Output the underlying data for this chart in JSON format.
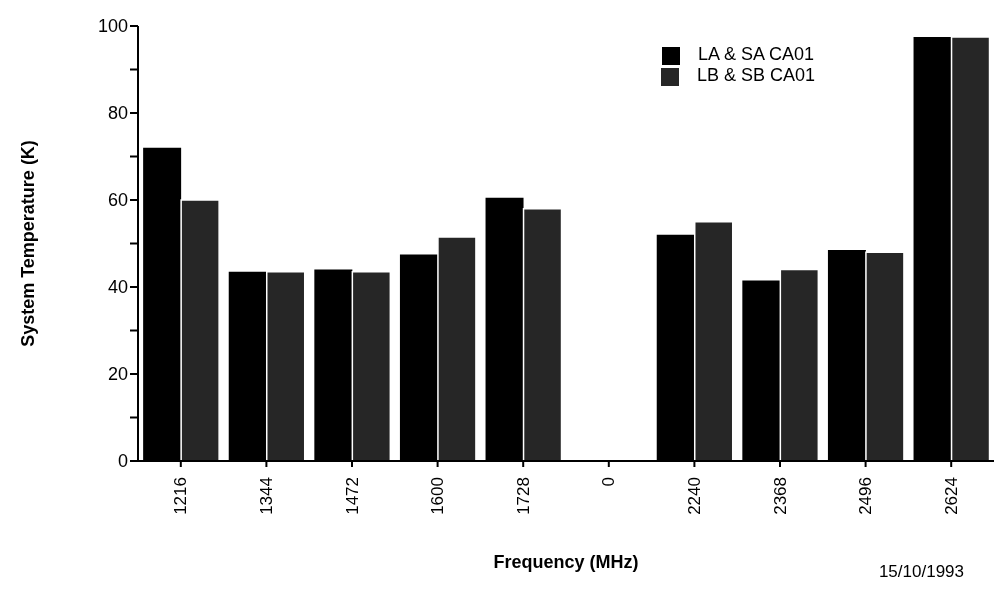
{
  "chart_data": {
    "type": "bar",
    "xlabel": "Frequency (MHz)",
    "ylabel": "System  Temperature  (K)",
    "categories": [
      "1216",
      "1344",
      "1472",
      "1600",
      "1728",
      "0",
      "2240",
      "2368",
      "2496",
      "2624"
    ],
    "series": [
      {
        "name": "LA & SA CA01",
        "color": "#000000",
        "values": [
          72,
          43.5,
          44,
          47.5,
          60.5,
          0,
          52,
          41.5,
          48.5,
          97.5
        ]
      },
      {
        "name": "LB & SB CA01",
        "color": "#262626",
        "values": [
          60,
          43.5,
          43.5,
          51.5,
          58,
          0,
          55,
          44,
          48,
          97.5
        ]
      }
    ],
    "ylim": [
      0,
      100
    ],
    "yticks": [
      0,
      {
        "value": 10,
        "label": null
      },
      20,
      {
        "value": 30,
        "label": null
      },
      40,
      {
        "value": 50,
        "label": null
      },
      60,
      {
        "value": 70,
        "label": null
      },
      80,
      {
        "value": 90,
        "label": null
      },
      100
    ],
    "legend": "top right",
    "grid": false,
    "annotations": [
      "15/10/1993"
    ]
  }
}
